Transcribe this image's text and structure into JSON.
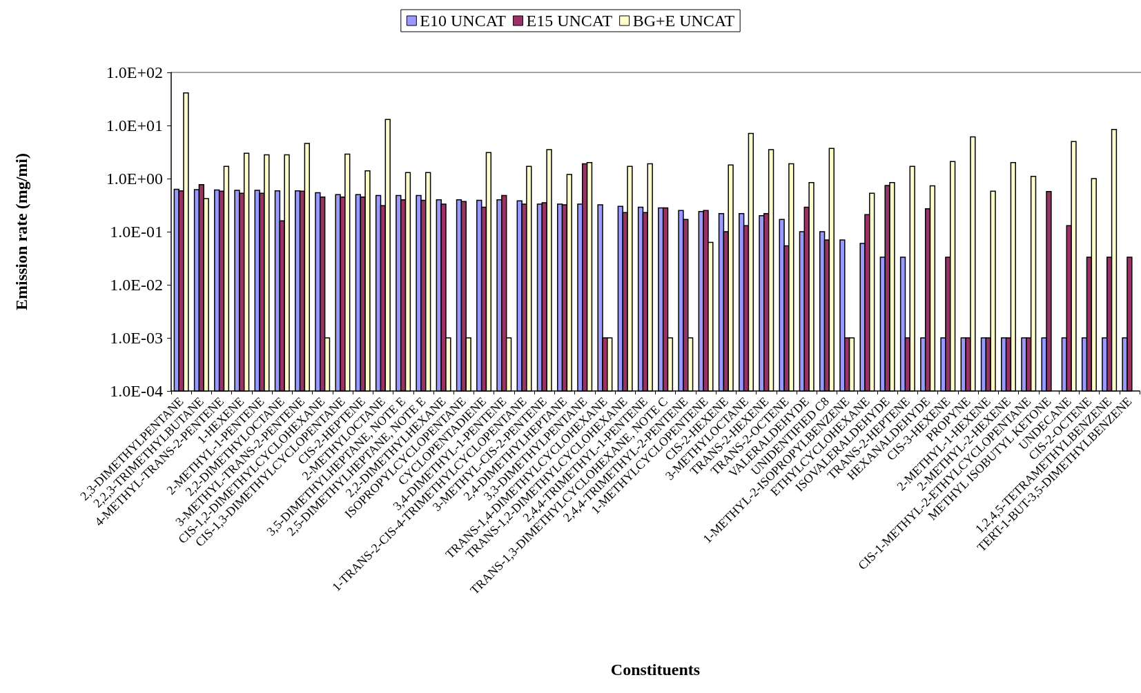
{
  "chart_data": {
    "type": "bar",
    "xlabel": "Constituents",
    "ylabel": "Emission rate (mg/mi)",
    "log": "y",
    "legend": "top",
    "grid": false,
    "categories": [
      "2,3-DIMETHYLPENTANE",
      "2,2,3-TRIMETHYLBUTANE",
      "4-METHYL-TRANS-2-PENTENE",
      "1-HEXENE",
      "2-METHYL-1-PENTENE",
      "2,2-DIMETHYLOCTANE",
      "3-METHYL-TRANS-2-PENTENE",
      "CIS-1,2-DIMETHYLCYCLOHEXANE",
      "CIS-1,3-DIMETHYLCYCLOPENTANE",
      "CIS-2-HEPTENE",
      "2-METHYLOCTANE",
      "3,5-DIMETHYLHEPTANE, NOTE E",
      "2,5-DIMETHYLHEPTANE, NOTE E",
      "2,2-DIMETHYLHEXANE",
      "ISOPROPYLCYCLOPENTANE",
      "CYCLOPENTADIENE",
      "3,4-DIMETHYL-1-PENTENE",
      "1-TRANS-2-CIS-4-TRIMETHYLCYCLOPENTANE",
      "3-METHYL-CIS-2-PENTENE",
      "2,4-DIMETHYLHEPTANE",
      "3,3-DIMETHYLPENTANE",
      "TRANS-1,4-DIMETHYLCYCLOHEXANE",
      "TRANS-1,2-DIMETHYLCYCLOHEXANE",
      "2,4,4-TRIMETHYL-1-PENTENE",
      "TRANS-1,3-DIMETHYLCYCLOHEXANE, NOTE C",
      "2,4,4-TRIMETHYL-2-PENTENE",
      "1-METHYLCYCLOPENTENE",
      "CIS-2-HEXENE",
      "3-METHYLOCTANE",
      "TRANS-2-HEXENE",
      "TRANS-2-OCTENE",
      "VALERALDEHYDE",
      "UNIDENTIFIED C8",
      "1-METHYL-2-ISOPROPYLBENZENE",
      "ETHYLCYCLOHEXANE",
      "ISOVALERALDEHYDE",
      "TRANS-2-HEPTENE",
      "HEXANALDEHYDE",
      "CIS-3-HEXENE",
      "PROPYNE",
      "2-METHYL-1-HEXENE",
      "2-METHYL-2-HEXENE",
      "CIS-1-METHYL-2-ETHYLCYCLOPENTANE",
      "METHYL ISOBUTYL KETONE",
      "UNDECANE",
      "CIS-2-OCTENE",
      "1,2,4,5-TETRAMETHYLBENZENE",
      "TERT-1-BUT-3,5-DIMETHYLBENZENE"
    ],
    "series": [
      {
        "name": "E10 UNCAT",
        "color": "#9999ff",
        "values": [
          0.63,
          0.62,
          0.61,
          0.6,
          0.6,
          0.59,
          0.59,
          0.54,
          0.5,
          0.5,
          0.48,
          0.48,
          0.48,
          0.4,
          0.4,
          0.39,
          0.4,
          0.38,
          0.33,
          0.33,
          0.33,
          0.32,
          0.3,
          0.29,
          0.28,
          0.25,
          0.24,
          0.22,
          0.22,
          0.2,
          0.17,
          0.1,
          0.1,
          0.07,
          0.06,
          0.033,
          0.033,
          0.001,
          0.001,
          0.001,
          0.001,
          0.001,
          0.001,
          0.001,
          0.001,
          0.001,
          0.001,
          0.001
        ]
      },
      {
        "name": "E15 UNCAT",
        "color": "#993366",
        "values": [
          0.59,
          0.77,
          0.58,
          0.53,
          0.53,
          0.16,
          0.58,
          0.45,
          0.45,
          0.45,
          0.31,
          0.4,
          0.39,
          0.33,
          0.37,
          0.29,
          0.48,
          0.33,
          0.35,
          0.32,
          1.9,
          0.001,
          0.23,
          0.23,
          0.28,
          0.17,
          0.25,
          0.1,
          0.13,
          0.22,
          0.054,
          0.29,
          0.07,
          0.001,
          0.21,
          0.74,
          0.001,
          0.27,
          0.033,
          0.001,
          0.001,
          0.001,
          0.001,
          0.57,
          0.13,
          0.033,
          0.033,
          0.033
        ]
      },
      {
        "name": "BG+E UNCAT",
        "color": "#ffffcc",
        "values": [
          41,
          0.42,
          1.7,
          3.0,
          2.8,
          2.8,
          4.6,
          0.001,
          2.9,
          1.4,
          13,
          1.3,
          1.3,
          0.001,
          0.001,
          3.1,
          0.001,
          1.7,
          3.5,
          1.2,
          2.0,
          0.001,
          1.7,
          1.9,
          0.001,
          0.001,
          0.063,
          1.8,
          7.1,
          3.5,
          1.9,
          0.84,
          3.7,
          0.001,
          0.53,
          0.84,
          1.7,
          0.73,
          2.1,
          6.1,
          0.58,
          2.0,
          1.1,
          null,
          5.0,
          1.0,
          8.4,
          null
        ]
      }
    ],
    "ylim": [
      0.0001,
      100
    ],
    "yticks": [
      {
        "value": 0.0001,
        "label": "1.0E-04"
      },
      {
        "value": 0.001,
        "label": "1.0E-03"
      },
      {
        "value": 0.01,
        "label": "1.0E-02"
      },
      {
        "value": 0.1,
        "label": "1.0E-01"
      },
      {
        "value": 1,
        "label": "1.0E+00"
      },
      {
        "value": 10,
        "label": "1.0E+01"
      },
      {
        "value": 100,
        "label": "1.0E+02"
      }
    ]
  }
}
